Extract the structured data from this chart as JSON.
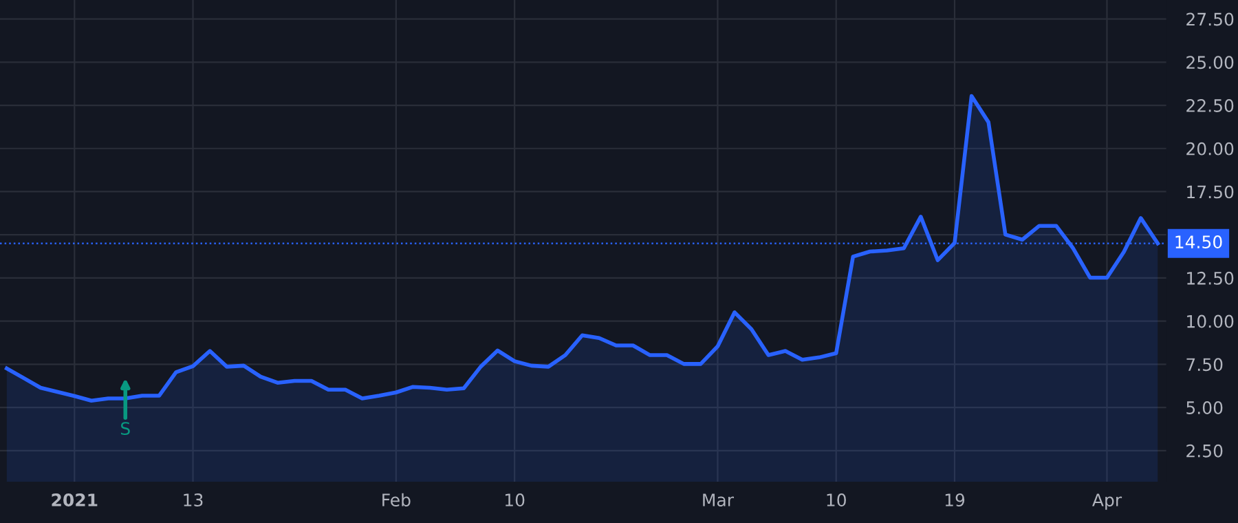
{
  "chart_data": {
    "type": "area",
    "categories": [
      null,
      null,
      null,
      null,
      "2021",
      null,
      null,
      null,
      null,
      null,
      null,
      "13",
      null,
      null,
      null,
      null,
      null,
      null,
      null,
      null,
      null,
      null,
      null,
      "Feb",
      null,
      null,
      null,
      null,
      null,
      null,
      "10",
      null,
      null,
      null,
      null,
      null,
      null,
      null,
      null,
      null,
      null,
      null,
      "Mar",
      null,
      null,
      null,
      null,
      null,
      null,
      "10",
      null,
      null,
      null,
      null,
      null,
      null,
      "19",
      null,
      null,
      null,
      null,
      null,
      null,
      null,
      null,
      "Apr",
      null,
      null,
      null
    ],
    "series": [
      {
        "color": "#2962ff",
        "values": [
          7.26,
          6.7,
          6.14,
          5.9,
          5.66,
          5.39,
          5.52,
          5.52,
          5.68,
          5.68,
          7.04,
          7.39,
          8.27,
          7.36,
          7.42,
          6.78,
          6.43,
          6.54,
          6.54,
          6.03,
          6.03,
          5.52,
          5.68,
          5.87,
          6.19,
          6.14,
          6.03,
          6.11,
          7.36,
          8.3,
          7.68,
          7.42,
          7.36,
          8.03,
          9.18,
          9.02,
          8.59,
          8.59,
          8.03,
          8.03,
          7.52,
          7.52,
          8.54,
          10.51,
          9.53,
          8.03,
          8.27,
          7.76,
          7.9,
          8.14,
          13.74,
          14.03,
          14.09,
          14.22,
          16.05,
          13.53,
          14.53,
          23.04,
          21.52,
          15.01,
          14.72,
          15.52,
          15.52,
          14.22,
          12.52,
          12.52,
          14.01,
          15.97,
          14.5
        ]
      }
    ],
    "ylim": [
      0.7,
      28.6
    ],
    "yticks": [
      {
        "value": 2.5,
        "label": "2.50"
      },
      {
        "value": 5,
        "label": "5.00"
      },
      {
        "value": 7.5,
        "label": "7.50"
      },
      {
        "value": 10,
        "label": "10.00"
      },
      {
        "value": 12.5,
        "label": "12.50"
      },
      {
        "value": 15,
        "label": null
      },
      {
        "value": 17.5,
        "label": "17.50"
      },
      {
        "value": 20,
        "label": "20.00"
      },
      {
        "value": 22.5,
        "label": "22.50"
      },
      {
        "value": 25,
        "label": "25.00"
      },
      {
        "value": 27.5,
        "label": "27.50"
      }
    ],
    "ref_lines": [
      {
        "axis": "y",
        "value": 14.5,
        "label": "14.50",
        "color": "#2962ff",
        "line_style": "dotted"
      }
    ],
    "annotations": [
      "S"
    ],
    "grid": true,
    "legend": false
  }
}
